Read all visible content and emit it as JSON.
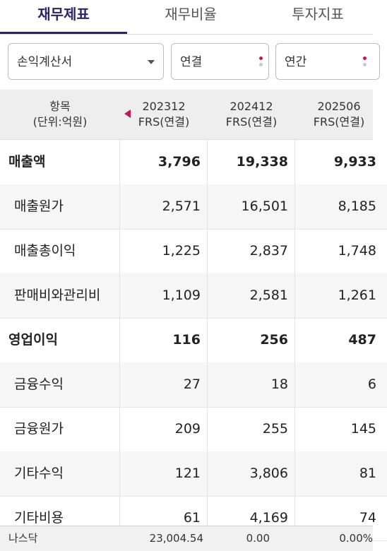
{
  "tabs": [
    {
      "label": "재무제표",
      "active": true
    },
    {
      "label": "재무비율",
      "active": false
    },
    {
      "label": "투자지표",
      "active": false
    }
  ],
  "filters": {
    "statement": "손익계산서",
    "consolidation": "연결",
    "period": "연간"
  },
  "table": {
    "header_item_line1": "항목",
    "header_item_line2": "(단위:억원)",
    "columns": [
      {
        "period": "202312",
        "basis": "FRS(연결)"
      },
      {
        "period": "202412",
        "basis": "FRS(연결)"
      },
      {
        "period": "202506",
        "basis": "FRS(연결)"
      }
    ],
    "rows": [
      {
        "label": "매출액",
        "bold": true,
        "values": [
          "3,796",
          "19,338",
          "9,933"
        ]
      },
      {
        "label": "매출원가",
        "bold": false,
        "values": [
          "2,571",
          "16,501",
          "8,185"
        ]
      },
      {
        "label": "매출총이익",
        "bold": false,
        "values": [
          "1,225",
          "2,837",
          "1,748"
        ]
      },
      {
        "label": "판매비와관리비",
        "bold": false,
        "values": [
          "1,109",
          "2,581",
          "1,261"
        ]
      },
      {
        "label": "영업이익",
        "bold": true,
        "values": [
          "116",
          "256",
          "487"
        ]
      },
      {
        "label": "금융수익",
        "bold": false,
        "values": [
          "27",
          "18",
          "6"
        ]
      },
      {
        "label": "금융원가",
        "bold": false,
        "values": [
          "209",
          "255",
          "145"
        ]
      },
      {
        "label": "기타수익",
        "bold": false,
        "values": [
          "121",
          "3,806",
          "81"
        ]
      },
      {
        "label": "기타비용",
        "bold": false,
        "values": [
          "61",
          "4,169",
          "74"
        ]
      }
    ]
  },
  "ticker": {
    "name": "나스닥",
    "value": "23,004.54",
    "change": "0.00",
    "change_pct": "0.00%"
  },
  "colors": {
    "accent": "#2a2566",
    "marker": "#c2185b"
  }
}
